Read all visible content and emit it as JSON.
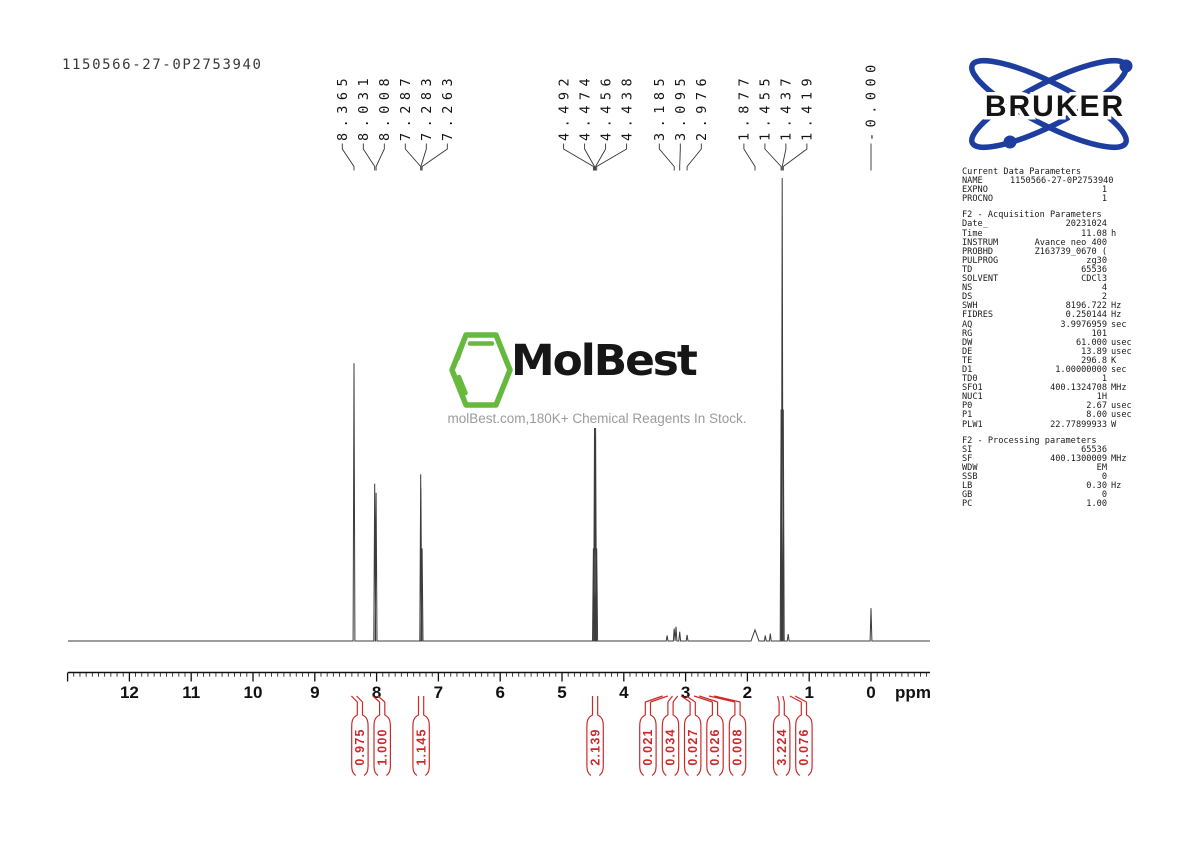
{
  "title": "1150566-27-0P2753940",
  "logo": {
    "brand": "BRUKER",
    "color": "#1d3e9e"
  },
  "watermark": {
    "brand": "MolBest",
    "tagline": "molBest.com,180K+ Chemical Reagents In Stock.",
    "green": "#67b93e"
  },
  "colors": {
    "integral_red": "#cc2a2a",
    "trace": "#3c3c3c",
    "axis": "#111111"
  },
  "chart_data": {
    "type": "line",
    "title": "1H NMR spectrum 1150566-27-0P2753940",
    "xlabel": "ppm",
    "x_axis": {
      "min": -0.95,
      "max": 13.0,
      "direction": "reversed",
      "minor_tick": 0.1,
      "major_tick": 1.0,
      "tick_labels": [
        12,
        11,
        10,
        9,
        8,
        7,
        6,
        5,
        4,
        3,
        2,
        1,
        0
      ]
    },
    "y_axis": {
      "visible": false
    },
    "peaks": [
      {
        "ppm": 8.365,
        "i": 0.6
      },
      {
        "ppm": 8.031,
        "i": 0.34
      },
      {
        "ppm": 8.008,
        "i": 0.32
      },
      {
        "ppm": 7.287,
        "i": 0.36
      },
      {
        "ppm": 7.283,
        "i": 0.33
      },
      {
        "ppm": 7.263,
        "i": 0.2
      },
      {
        "ppm": 4.492,
        "i": 0.2
      },
      {
        "ppm": 4.474,
        "i": 0.46
      },
      {
        "ppm": 4.456,
        "i": 0.46
      },
      {
        "ppm": 4.438,
        "i": 0.2
      },
      {
        "ppm": 3.3,
        "i": 0.012
      },
      {
        "ppm": 3.185,
        "i": 0.027
      },
      {
        "ppm": 3.155,
        "i": 0.031
      },
      {
        "ppm": 3.095,
        "i": 0.02
      },
      {
        "ppm": 2.976,
        "i": 0.013
      },
      {
        "ppm": 1.877,
        "i": 0.024,
        "w": 4
      },
      {
        "ppm": 1.71,
        "i": 0.012
      },
      {
        "ppm": 1.63,
        "i": 0.016
      },
      {
        "ppm": 1.455,
        "i": 0.5
      },
      {
        "ppm": 1.437,
        "i": 1.0
      },
      {
        "ppm": 1.419,
        "i": 0.5
      },
      {
        "ppm": 1.34,
        "i": 0.015
      },
      {
        "ppm": 0.0,
        "i": 0.071
      }
    ],
    "peak_label_groups": [
      [
        "8.365",
        "8.031",
        "8.008",
        "7.287",
        "7.283",
        "7.263"
      ],
      [
        "4.492",
        "4.474",
        "4.456",
        "4.438"
      ],
      [
        "3.185",
        "3.095",
        "2.976"
      ],
      [
        "1.877",
        "1.455",
        "1.437",
        "1.419"
      ],
      [
        "-0.000"
      ]
    ],
    "integrals": [
      {
        "value": "0.975",
        "ppm": 8.27,
        "target_ppm": 8.365
      },
      {
        "value": "1.000",
        "ppm": 7.91,
        "target_ppm": 8.02
      },
      {
        "value": "1.145",
        "ppm": 7.28,
        "target_ppm": 7.28
      },
      {
        "value": "2.139",
        "ppm": 4.465,
        "target_ppm": 4.465
      },
      {
        "value": "0.021",
        "ppm": 3.61,
        "target_ppm": 3.33
      },
      {
        "value": "0.034",
        "ppm": 3.245,
        "target_ppm": 3.17
      },
      {
        "value": "0.027",
        "ppm": 2.885,
        "target_ppm": 3.03
      },
      {
        "value": "0.026",
        "ppm": 2.525,
        "target_ppm": 2.82
      },
      {
        "value": "0.008",
        "ppm": 2.16,
        "target_ppm": 2.58
      },
      {
        "value": "3.224",
        "ppm": 1.445,
        "target_ppm": 1.47
      },
      {
        "value": "0.076",
        "ppm": 1.085,
        "target_ppm": 1.27
      }
    ]
  },
  "parameters": {
    "sections": [
      {
        "header": "Current Data Parameters",
        "rows": [
          {
            "n": "NAME",
            "v": "1150566-27-0P2753940",
            "u": ""
          },
          {
            "n": "EXPNO",
            "v": "1",
            "u": ""
          },
          {
            "n": "PROCNO",
            "v": "1",
            "u": ""
          }
        ]
      },
      {
        "header": "F2 - Acquisition Parameters",
        "rows": [
          {
            "n": "Date_",
            "v": "20231024",
            "u": ""
          },
          {
            "n": "Time",
            "v": "11.08",
            "u": "h"
          },
          {
            "n": "INSTRUM",
            "v": "Avance neo 400",
            "u": ""
          },
          {
            "n": "PROBHD",
            "v": "Z163739_0670 (",
            "u": ""
          },
          {
            "n": "PULPROG",
            "v": "zg30",
            "u": ""
          },
          {
            "n": "TD",
            "v": "65536",
            "u": ""
          },
          {
            "n": "SOLVENT",
            "v": "CDCl3",
            "u": ""
          },
          {
            "n": "NS",
            "v": "4",
            "u": ""
          },
          {
            "n": "DS",
            "v": "2",
            "u": ""
          },
          {
            "n": "SWH",
            "v": "8196.722",
            "u": "Hz"
          },
          {
            "n": "FIDRES",
            "v": "0.250144",
            "u": "Hz"
          },
          {
            "n": "AQ",
            "v": "3.9976959",
            "u": "sec"
          },
          {
            "n": "RG",
            "v": "101",
            "u": ""
          },
          {
            "n": "DW",
            "v": "61.000",
            "u": "usec"
          },
          {
            "n": "DE",
            "v": "13.89",
            "u": "usec"
          },
          {
            "n": "TE",
            "v": "296.8",
            "u": "K"
          },
          {
            "n": "D1",
            "v": "1.00000000",
            "u": "sec"
          },
          {
            "n": "TD0",
            "v": "1",
            "u": ""
          },
          {
            "n": "SFO1",
            "v": "400.1324708",
            "u": "MHz"
          },
          {
            "n": "NUC1",
            "v": "1H",
            "u": ""
          },
          {
            "n": "P0",
            "v": "2.67",
            "u": "usec"
          },
          {
            "n": "P1",
            "v": "8.00",
            "u": "usec"
          },
          {
            "n": "PLW1",
            "v": "22.77899933",
            "u": "W"
          }
        ]
      },
      {
        "header": "F2 - Processing parameters",
        "rows": [
          {
            "n": "SI",
            "v": "65536",
            "u": ""
          },
          {
            "n": "SF",
            "v": "400.1300009",
            "u": "MHz"
          },
          {
            "n": "WDW",
            "v": "EM",
            "u": ""
          },
          {
            "n": "SSB",
            "v": "0",
            "u": ""
          },
          {
            "n": "LB",
            "v": "0.30",
            "u": "Hz"
          },
          {
            "n": "GB",
            "v": "0",
            "u": ""
          },
          {
            "n": "PC",
            "v": "1.00",
            "u": ""
          }
        ]
      }
    ]
  }
}
